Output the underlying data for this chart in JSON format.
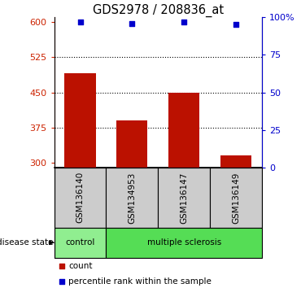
{
  "title": "GDS2978 / 208836_at",
  "samples": [
    "GSM136140",
    "GSM134953",
    "GSM136147",
    "GSM136149"
  ],
  "bar_values": [
    490,
    390,
    450,
    315
  ],
  "blue_values": [
    97,
    96,
    97,
    95
  ],
  "bar_color": "#bb1100",
  "blue_color": "#0000cc",
  "ylim_left": [
    290,
    610
  ],
  "yticks_left": [
    300,
    375,
    450,
    525,
    600
  ],
  "ylim_right": [
    0,
    100
  ],
  "yticks_right": [
    0,
    25,
    50,
    75,
    100
  ],
  "ytick_labels_right": [
    "0",
    "25",
    "50",
    "75",
    "100%"
  ],
  "grid_values": [
    375,
    450,
    525
  ],
  "control_color": "#90ee90",
  "ms_color": "#55dd55",
  "label_color_left": "#cc2200",
  "label_color_right": "#0000cc",
  "gray_box_color": "#cccccc",
  "base_value": 290,
  "bar_width": 0.6,
  "xlim": [
    -0.5,
    3.5
  ]
}
